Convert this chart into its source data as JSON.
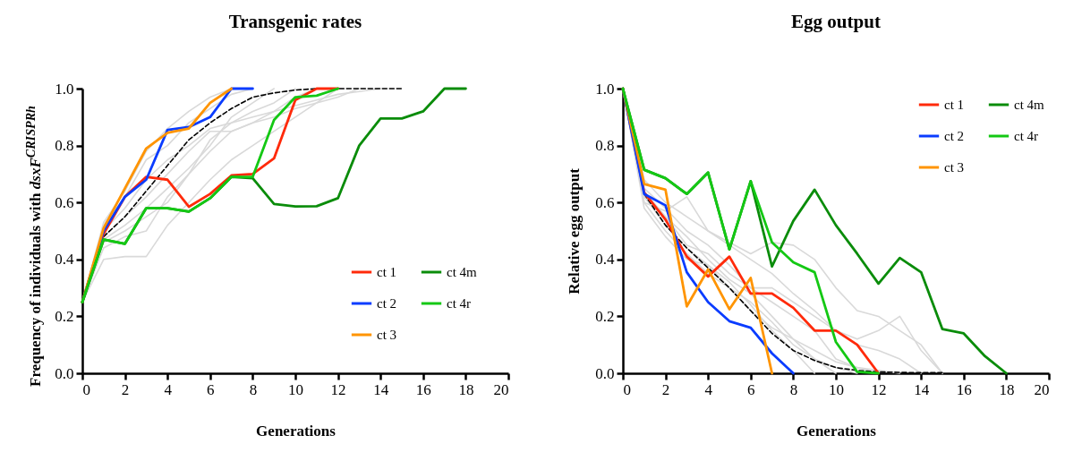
{
  "chart_data": [
    {
      "type": "line",
      "title": "Transgenic rates",
      "xlabel": "Generations",
      "ylabel": "Frequency of individuals with dsxF$^{CRISPRh}$",
      "xlim": [
        0,
        20
      ],
      "xticks": [
        0,
        2,
        4,
        6,
        8,
        10,
        12,
        14,
        16,
        18,
        20
      ],
      "ylim": [
        0,
        1
      ],
      "yticks": [
        {
          "value": 0,
          "label": "0.0"
        },
        {
          "value": 0.2,
          "label": "0.2"
        },
        {
          "value": 0.4,
          "label": "0.4"
        },
        {
          "value": 0.6,
          "label": "0.6"
        },
        {
          "value": 0.8,
          "label": "0.8"
        },
        {
          "value": 1,
          "label": "1.0"
        }
      ],
      "legend": "bottom right",
      "series": [
        {
          "color": "#d9d9d9",
          "x": [
            0,
            1,
            2,
            3,
            4,
            5,
            6,
            7,
            8,
            9,
            10,
            11,
            12
          ],
          "values": [
            0.25,
            0.4,
            0.41,
            0.41,
            0.52,
            0.6,
            0.68,
            0.75,
            0.8,
            0.85,
            0.9,
            0.95,
            1.0
          ]
        },
        {
          "color": "#d9d9d9",
          "x": [
            0,
            1,
            2,
            3,
            4,
            5,
            6,
            7,
            8,
            9,
            10,
            11
          ],
          "values": [
            0.25,
            0.44,
            0.48,
            0.5,
            0.62,
            0.7,
            0.78,
            0.85,
            0.88,
            0.92,
            0.97,
            1.0
          ]
        },
        {
          "color": "#d9d9d9",
          "x": [
            0,
            1,
            2,
            3,
            4,
            5,
            6,
            7,
            8
          ],
          "values": [
            0.25,
            0.52,
            0.62,
            0.75,
            0.8,
            0.88,
            0.93,
            0.98,
            1.0
          ]
        },
        {
          "color": "#d9d9d9",
          "x": [
            0,
            1,
            2,
            3,
            4,
            5,
            6,
            7,
            8,
            9
          ],
          "values": [
            0.25,
            0.47,
            0.52,
            0.58,
            0.65,
            0.72,
            0.8,
            0.9,
            0.95,
            1.0
          ]
        },
        {
          "color": "#d9d9d9",
          "x": [
            0,
            1,
            2,
            3,
            4,
            5,
            6,
            7,
            8,
            9,
            10
          ],
          "values": [
            0.25,
            0.5,
            0.58,
            0.68,
            0.75,
            0.8,
            0.86,
            0.88,
            0.92,
            0.95,
            1.0
          ]
        },
        {
          "color": "#d9d9d9",
          "x": [
            0,
            1,
            2,
            3,
            4,
            5,
            6,
            7,
            8,
            9,
            10,
            11,
            12,
            13,
            14
          ],
          "values": [
            0.25,
            0.46,
            0.5,
            0.55,
            0.6,
            0.7,
            0.82,
            0.88,
            0.9,
            0.92,
            0.94,
            0.96,
            0.98,
            0.99,
            1.0
          ]
        },
        {
          "color": "#d9d9d9",
          "x": [
            0,
            1,
            2,
            3,
            4,
            5,
            6,
            7
          ],
          "values": [
            0.25,
            0.53,
            0.64,
            0.78,
            0.86,
            0.92,
            0.97,
            1.0
          ]
        },
        {
          "color": "#d9d9d9",
          "x": [
            0,
            1,
            2,
            3,
            4,
            5,
            6,
            7,
            8,
            9,
            10,
            11,
            12,
            13
          ],
          "values": [
            0.25,
            0.48,
            0.55,
            0.62,
            0.7,
            0.78,
            0.85,
            0.85,
            0.88,
            0.9,
            0.93,
            0.95,
            0.97,
            1.0
          ]
        },
        {
          "color": "#000000",
          "line_style": "dashed",
          "x": [
            1,
            2,
            3,
            4,
            5,
            6,
            7,
            8,
            9,
            10,
            11,
            12,
            13,
            14,
            15
          ],
          "values": [
            0.48,
            0.55,
            0.64,
            0.73,
            0.82,
            0.88,
            0.93,
            0.97,
            0.985,
            0.995,
            1.0,
            1.0,
            1.0,
            1.0,
            1.0
          ]
        },
        {
          "name": "ct 1",
          "color": "#ff2a0a",
          "x": [
            0,
            1,
            2,
            3,
            4,
            5,
            6,
            7,
            8,
            9,
            10,
            11,
            12
          ],
          "values": [
            0.25,
            0.49,
            0.62,
            0.69,
            0.68,
            0.585,
            0.63,
            0.695,
            0.7,
            0.755,
            0.96,
            1.0,
            1.0
          ]
        },
        {
          "name": "ct 2",
          "color": "#0a3cff",
          "x": [
            0,
            1,
            2,
            3,
            4,
            5,
            6,
            7,
            8
          ],
          "values": [
            0.25,
            0.5,
            0.62,
            0.68,
            0.855,
            0.865,
            0.9,
            1.0,
            1.0
          ]
        },
        {
          "name": "ct 3",
          "color": "#ff9400",
          "x": [
            0,
            1,
            2,
            3,
            4,
            5,
            6,
            7
          ],
          "values": [
            0.25,
            0.51,
            0.65,
            0.79,
            0.845,
            0.86,
            0.95,
            1.0
          ]
        },
        {
          "name": "ct 4m",
          "color": "#0a8c0a",
          "x": [
            0,
            1,
            2,
            3,
            4,
            5,
            6,
            7,
            8,
            9,
            10,
            11,
            12,
            13,
            14,
            15,
            16,
            17,
            18
          ],
          "values": [
            0.25,
            0.47,
            0.455,
            0.58,
            0.58,
            0.568,
            0.615,
            0.69,
            0.685,
            0.595,
            0.586,
            0.587,
            0.615,
            0.8,
            0.895,
            0.895,
            0.92,
            1.0,
            1.0
          ]
        },
        {
          "name": "ct 4r",
          "color": "#14c814",
          "x": [
            0,
            1,
            2,
            3,
            4,
            5,
            6,
            7,
            8,
            9,
            10,
            11,
            12
          ],
          "values": [
            0.25,
            0.47,
            0.455,
            0.58,
            0.58,
            0.568,
            0.615,
            0.69,
            0.69,
            0.89,
            0.97,
            0.975,
            1.0
          ]
        }
      ]
    },
    {
      "type": "line",
      "title": "Egg output",
      "xlabel": "Generations",
      "ylabel": "Relative egg output",
      "xlim": [
        0,
        20
      ],
      "xticks": [
        0,
        2,
        4,
        6,
        8,
        10,
        12,
        14,
        16,
        18,
        20
      ],
      "ylim": [
        0,
        1
      ],
      "yticks": [
        {
          "value": 0,
          "label": "0.0"
        },
        {
          "value": 0.2,
          "label": "0.2"
        },
        {
          "value": 0.4,
          "label": "0.4"
        },
        {
          "value": 0.6,
          "label": "0.6"
        },
        {
          "value": 0.8,
          "label": "0.8"
        },
        {
          "value": 1,
          "label": "1.0"
        }
      ],
      "legend": "top right",
      "series": [
        {
          "color": "#d9d9d9",
          "x": [
            0,
            1,
            2,
            3,
            4,
            5,
            6,
            7,
            8,
            9,
            10
          ],
          "values": [
            1,
            0.62,
            0.55,
            0.48,
            0.4,
            0.33,
            0.28,
            0.2,
            0.12,
            0.05,
            0.0
          ]
        },
        {
          "color": "#d9d9d9",
          "x": [
            0,
            1,
            2,
            3,
            4,
            5,
            6,
            7,
            8,
            9,
            10,
            11
          ],
          "values": [
            1,
            0.6,
            0.5,
            0.42,
            0.35,
            0.3,
            0.25,
            0.18,
            0.1,
            0.05,
            0.02,
            0.0
          ]
        },
        {
          "color": "#d9d9d9",
          "x": [
            0,
            1,
            2,
            3,
            4,
            5,
            6,
            7,
            8,
            9,
            10,
            11,
            12
          ],
          "values": [
            1,
            0.65,
            0.58,
            0.5,
            0.45,
            0.38,
            0.3,
            0.25,
            0.2,
            0.15,
            0.05,
            0.02,
            0.0
          ]
        },
        {
          "color": "#d9d9d9",
          "x": [
            0,
            1,
            2,
            3,
            4,
            5,
            6,
            7,
            8,
            9
          ],
          "values": [
            1,
            0.58,
            0.48,
            0.4,
            0.38,
            0.32,
            0.24,
            0.15,
            0.08,
            0.0
          ]
        },
        {
          "color": "#d9d9d9",
          "x": [
            0,
            1,
            2,
            3,
            4,
            5,
            6,
            7,
            8,
            9,
            10,
            11,
            12,
            13,
            14
          ],
          "values": [
            1,
            0.68,
            0.6,
            0.55,
            0.5,
            0.45,
            0.4,
            0.35,
            0.28,
            0.22,
            0.15,
            0.1,
            0.08,
            0.05,
            0.0
          ]
        },
        {
          "color": "#d9d9d9",
          "x": [
            0,
            1,
            2,
            3,
            4,
            5,
            6,
            7,
            8,
            9,
            10,
            11,
            12,
            13,
            14,
            15
          ],
          "values": [
            1,
            0.64,
            0.55,
            0.45,
            0.42,
            0.35,
            0.3,
            0.3,
            0.25,
            0.2,
            0.15,
            0.12,
            0.15,
            0.2,
            0.08,
            0.0
          ]
        },
        {
          "color": "#d9d9d9",
          "x": [
            0,
            1,
            2,
            3,
            4,
            5,
            6,
            7,
            8,
            9,
            10,
            11,
            12,
            13
          ],
          "values": [
            1,
            0.62,
            0.52,
            0.44,
            0.38,
            0.3,
            0.22,
            0.16,
            0.12,
            0.08,
            0.04,
            0.02,
            0.01,
            0.0
          ]
        },
        {
          "color": "#d9d9d9",
          "x": [
            0,
            1,
            2,
            3,
            4,
            5,
            6,
            7,
            8,
            9,
            10,
            11,
            12,
            13,
            14,
            15
          ],
          "values": [
            1,
            0.6,
            0.57,
            0.62,
            0.5,
            0.46,
            0.42,
            0.46,
            0.45,
            0.4,
            0.3,
            0.22,
            0.2,
            0.15,
            0.1,
            0.0
          ]
        },
        {
          "color": "#000000",
          "line_style": "dashed",
          "x": [
            1,
            2,
            3,
            4,
            5,
            6,
            7,
            8,
            9,
            10,
            11,
            12,
            13,
            14,
            15
          ],
          "values": [
            0.63,
            0.52,
            0.44,
            0.37,
            0.3,
            0.22,
            0.14,
            0.08,
            0.045,
            0.02,
            0.01,
            0.005,
            0.003,
            0.002,
            0.002
          ]
        },
        {
          "name": "ct 1",
          "color": "#ff2a0a",
          "x": [
            0,
            1,
            2,
            3,
            4,
            5,
            6,
            7,
            8,
            9,
            10,
            11,
            12
          ],
          "values": [
            1,
            0.635,
            0.54,
            0.41,
            0.34,
            0.41,
            0.28,
            0.28,
            0.23,
            0.15,
            0.15,
            0.1,
            0.0
          ]
        },
        {
          "name": "ct 2",
          "color": "#0a3cff",
          "x": [
            0,
            1,
            2,
            3,
            4,
            5,
            6,
            7,
            8
          ],
          "values": [
            1,
            0.63,
            0.59,
            0.355,
            0.25,
            0.183,
            0.16,
            0.07,
            0.0
          ]
        },
        {
          "name": "ct 3",
          "color": "#ff9400",
          "x": [
            0,
            1,
            2,
            3,
            4,
            5,
            6,
            7
          ],
          "values": [
            1,
            0.665,
            0.645,
            0.235,
            0.365,
            0.225,
            0.335,
            0.0
          ]
        },
        {
          "name": "ct 4m",
          "color": "#0a8c0a",
          "x": [
            0,
            1,
            2,
            3,
            4,
            5,
            6,
            7,
            8,
            9,
            10,
            11,
            12,
            13,
            14,
            15,
            16,
            17,
            18
          ],
          "values": [
            1,
            0.715,
            0.685,
            0.63,
            0.705,
            0.435,
            0.675,
            0.375,
            0.535,
            0.645,
            0.52,
            0.42,
            0.315,
            0.405,
            0.355,
            0.155,
            0.14,
            0.06,
            0.0
          ]
        },
        {
          "name": "ct 4r",
          "color": "#14c814",
          "x": [
            0,
            1,
            2,
            3,
            4,
            5,
            6,
            7,
            8,
            9,
            10,
            11,
            12
          ],
          "values": [
            1,
            0.715,
            0.685,
            0.63,
            0.705,
            0.435,
            0.675,
            0.46,
            0.39,
            0.355,
            0.11,
            0.005,
            0.0
          ]
        }
      ]
    }
  ]
}
